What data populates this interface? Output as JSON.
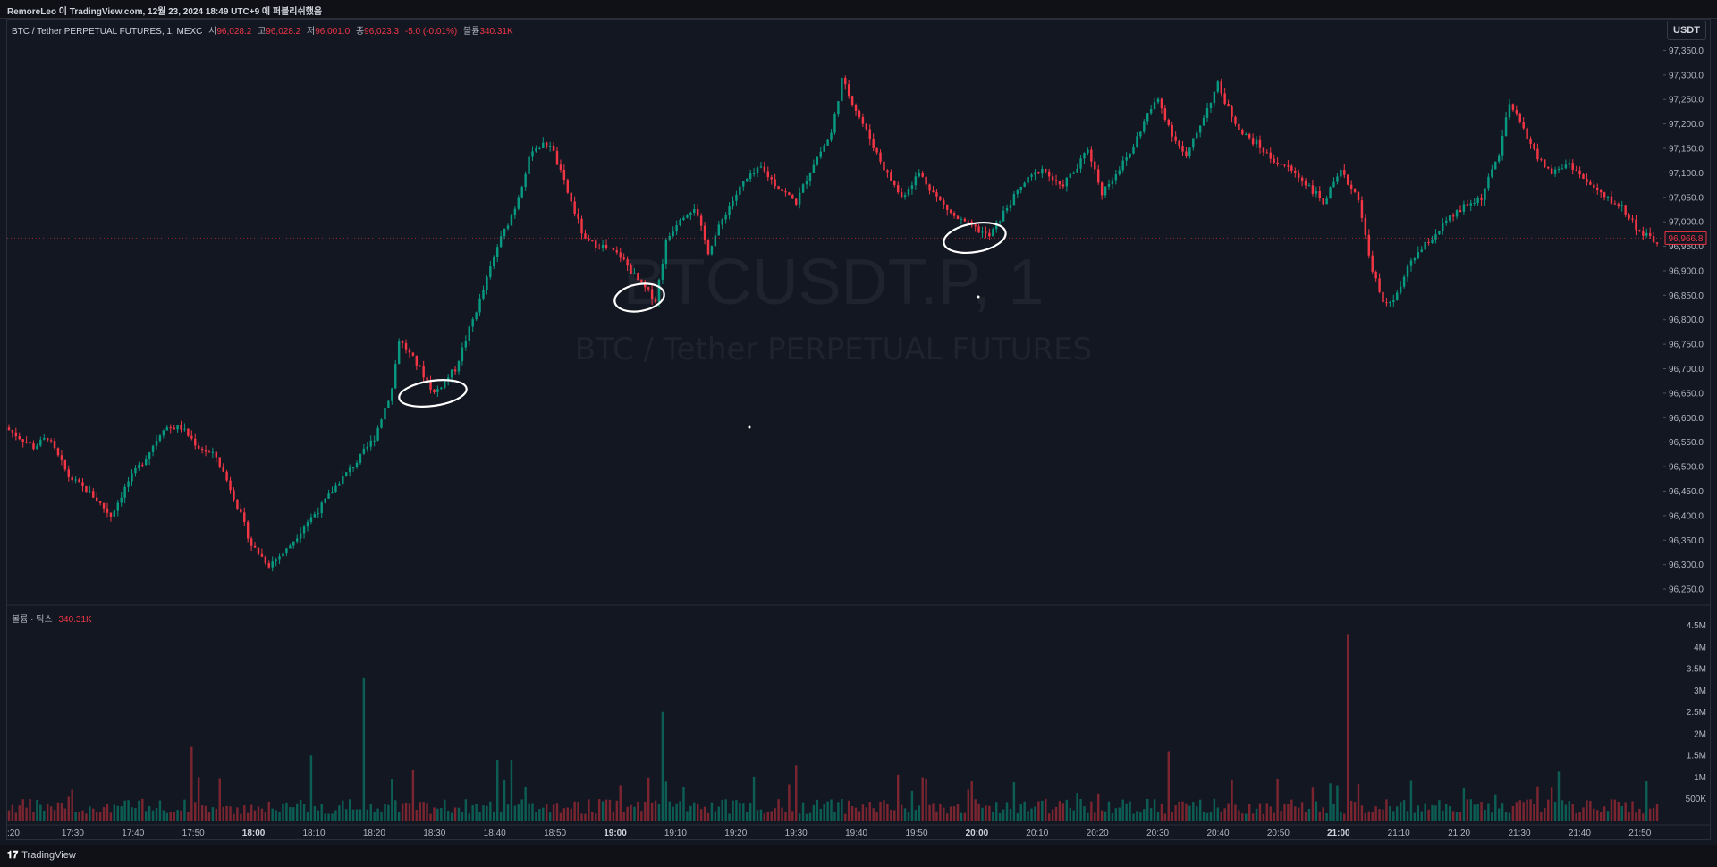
{
  "header": {
    "caption": "RemoreLeo 이 TradingView.com, 12월 23, 2024 18:49 UTC+9 에 퍼블리쉬했음"
  },
  "legend": {
    "symbol": "BTC / Tether PERPETUAL FUTURES, 1, MEXC",
    "open_label": "시",
    "open": "96,028.2",
    "high_label": "고",
    "high": "96,028.2",
    "low_label": "저",
    "low": "96,001.0",
    "close_label": "종",
    "close": "96,023.3",
    "change": "-5.0 (-0.01%)",
    "volume_label": "볼륨",
    "volume": "340.31K"
  },
  "currency_button": "USDT",
  "watermark": {
    "ticker": "BTCUSDT.P, 1",
    "name": "BTC / Tether PERPETUAL FUTURES"
  },
  "volume_pane": {
    "label": "볼륨 · 틱스",
    "value": "340.31K"
  },
  "footer": {
    "brand": "TradingView",
    "brand_icon": "tradingview-logo-icon"
  },
  "colors": {
    "background": "#131722",
    "up": "#089981",
    "down": "#f23645",
    "up_volume": "#0c5e55",
    "down_volume": "#7a2530",
    "grid": "#1c202b",
    "price_tag": "#f23645"
  },
  "chart_data": {
    "type": "candlestick",
    "price_axis": {
      "ticks": [
        "97,350.0",
        "97,300.0",
        "97,250.0",
        "97,200.0",
        "97,150.0",
        "97,100.0",
        "97,050.0",
        "97,000.0",
        "96,950.0",
        "96,900.0",
        "96,850.0",
        "96,800.0",
        "96,750.0",
        "96,700.0",
        "96,650.0",
        "96,600.0",
        "96,550.0",
        "96,500.0",
        "96,450.0",
        "96,400.0",
        "96,350.0",
        "96,300.0",
        "96,250.0"
      ],
      "range": [
        96230,
        97380
      ],
      "last_price": "96,966.8",
      "last_price_value": 96966.8
    },
    "volume_axis": {
      "ticks": [
        "4.5M",
        "4M",
        "3.5M",
        "3M",
        "2.5M",
        "2M",
        "1.5M",
        "1M",
        "500K"
      ],
      "range": [
        0,
        4700000
      ]
    },
    "time_axis": {
      "labels": [
        ":20",
        "17:30",
        "17:40",
        "17:50",
        "18:00",
        "18:10",
        "18:20",
        "18:30",
        "18:40",
        "18:50",
        "19:00",
        "19:10",
        "19:20",
        "19:30",
        "19:40",
        "19:50",
        "20:00",
        "20:10",
        "20:20",
        "20:30",
        "20:40",
        "20:50",
        "21:00",
        "21:10",
        "21:20",
        "21:30",
        "21:40",
        "21:50"
      ],
      "bold_labels": [
        "18:00",
        "19:00",
        "20:00",
        "21:00"
      ]
    },
    "price_path": [
      [
        0,
        96580
      ],
      [
        8,
        96540
      ],
      [
        12,
        96560
      ],
      [
        18,
        96480
      ],
      [
        25,
        96440
      ],
      [
        30,
        96400
      ],
      [
        35,
        96470
      ],
      [
        40,
        96520
      ],
      [
        45,
        96580
      ],
      [
        50,
        96580
      ],
      [
        55,
        96540
      ],
      [
        60,
        96520
      ],
      [
        65,
        96440
      ],
      [
        70,
        96340
      ],
      [
        75,
        96300
      ],
      [
        80,
        96330
      ],
      [
        85,
        96380
      ],
      [
        90,
        96420
      ],
      [
        95,
        96470
      ],
      [
        100,
        96510
      ],
      [
        105,
        96560
      ],
      [
        110,
        96660
      ],
      [
        112,
        96760
      ],
      [
        118,
        96700
      ],
      [
        122,
        96650
      ],
      [
        128,
        96700
      ],
      [
        132,
        96780
      ],
      [
        136,
        96860
      ],
      [
        140,
        96950
      ],
      [
        145,
        97030
      ],
      [
        150,
        97150
      ],
      [
        155,
        97160
      ],
      [
        160,
        97060
      ],
      [
        165,
        96960
      ],
      [
        170,
        96950
      ],
      [
        175,
        96930
      ],
      [
        180,
        96880
      ],
      [
        185,
        96840
      ],
      [
        188,
        96960
      ],
      [
        192,
        97010
      ],
      [
        196,
        97030
      ],
      [
        200,
        96940
      ],
      [
        205,
        97020
      ],
      [
        210,
        97080
      ],
      [
        215,
        97110
      ],
      [
        220,
        97070
      ],
      [
        225,
        97040
      ],
      [
        230,
        97120
      ],
      [
        235,
        97180
      ],
      [
        238,
        97290
      ],
      [
        242,
        97230
      ],
      [
        246,
        97170
      ],
      [
        250,
        97110
      ],
      [
        255,
        97050
      ],
      [
        260,
        97100
      ],
      [
        265,
        97050
      ],
      [
        270,
        97010
      ],
      [
        275,
        96990
      ],
      [
        280,
        96970
      ],
      [
        285,
        97030
      ],
      [
        290,
        97080
      ],
      [
        295,
        97110
      ],
      [
        300,
        97070
      ],
      [
        305,
        97110
      ],
      [
        308,
        97150
      ],
      [
        312,
        97060
      ],
      [
        316,
        97100
      ],
      [
        320,
        97140
      ],
      [
        325,
        97220
      ],
      [
        328,
        97250
      ],
      [
        332,
        97180
      ],
      [
        336,
        97130
      ],
      [
        340,
        97200
      ],
      [
        345,
        97280
      ],
      [
        348,
        97230
      ],
      [
        352,
        97180
      ],
      [
        356,
        97160
      ],
      [
        360,
        97130
      ],
      [
        365,
        97110
      ],
      [
        370,
        97080
      ],
      [
        375,
        97040
      ],
      [
        380,
        97100
      ],
      [
        385,
        97050
      ],
      [
        388,
        96930
      ],
      [
        392,
        96830
      ],
      [
        396,
        96850
      ],
      [
        400,
        96920
      ],
      [
        405,
        96960
      ],
      [
        410,
        97000
      ],
      [
        415,
        97030
      ],
      [
        420,
        97050
      ],
      [
        425,
        97140
      ],
      [
        428,
        97240
      ],
      [
        432,
        97190
      ],
      [
        436,
        97130
      ],
      [
        440,
        97100
      ],
      [
        445,
        97120
      ],
      [
        450,
        97080
      ],
      [
        455,
        97050
      ],
      [
        460,
        97030
      ],
      [
        465,
        96980
      ],
      [
        469,
        96960
      ]
    ],
    "volume_spikes": [
      {
        "x": 101,
        "value": 3300000
      },
      {
        "x": 52,
        "value": 1700000
      },
      {
        "x": 86,
        "value": 1500000
      },
      {
        "x": 139,
        "value": 1400000
      },
      {
        "x": 143,
        "value": 1400000
      },
      {
        "x": 186,
        "value": 2500000
      },
      {
        "x": 260,
        "value": 1000000
      },
      {
        "x": 330,
        "value": 1600000
      },
      {
        "x": 381,
        "value": 4300000
      }
    ]
  }
}
